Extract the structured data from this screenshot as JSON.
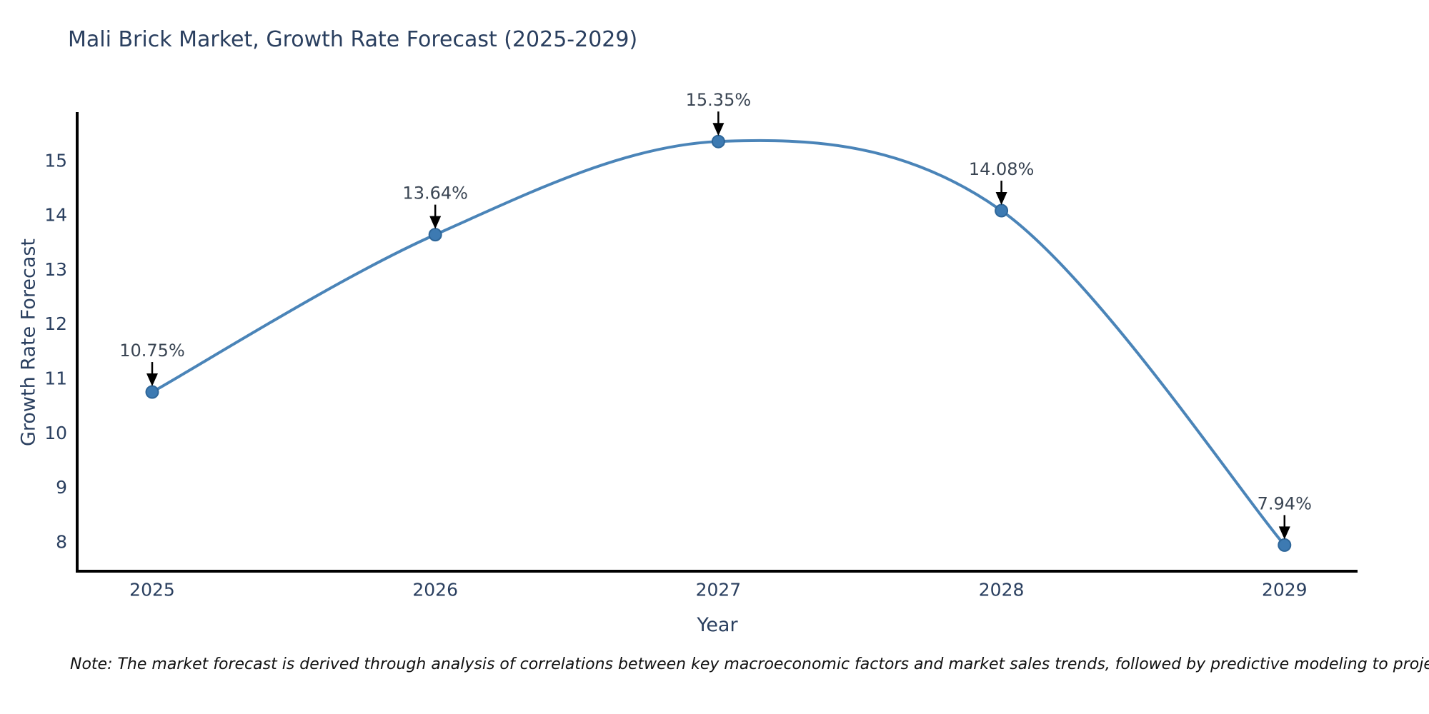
{
  "title": "Mali Brick Market, Growth Rate Forecast (2025-2029)",
  "note": "Note: The market forecast is derived through analysis of correlations between key macroeconomic factors and market sales trends, followed by predictive modeling to project future sales",
  "chart_data": {
    "type": "line",
    "title": "Mali Brick Market, Growth Rate Forecast (2025-2029)",
    "xlabel": "Year",
    "ylabel": "Growth Rate Forecast",
    "x": [
      2025,
      2026,
      2027,
      2028,
      2029
    ],
    "values": [
      10.75,
      13.64,
      15.35,
      14.08,
      7.94
    ],
    "point_labels": [
      "10.75%",
      "13.64%",
      "15.35%",
      "14.08%",
      "7.94%"
    ],
    "xticks": [
      2025,
      2026,
      2027,
      2028,
      2029
    ],
    "xtick_labels": [
      "2025",
      "2026",
      "2027",
      "2028",
      "2029"
    ],
    "yticks": [
      8,
      9,
      10,
      11,
      12,
      13,
      14,
      15
    ],
    "xlim": [
      2024.735,
      2029.258
    ],
    "ylim": [
      7.46,
      15.89
    ],
    "grid": false,
    "legend": "none",
    "line_shape": "spline",
    "colors": {
      "line": "#4a84b8",
      "marker_fill": "#3d7ab2",
      "marker_stroke": "#2e6699",
      "axis": "#000000",
      "tick_text": "#2a3f5f",
      "annotation_text": "#3a4553",
      "arrow": "#000000"
    }
  }
}
